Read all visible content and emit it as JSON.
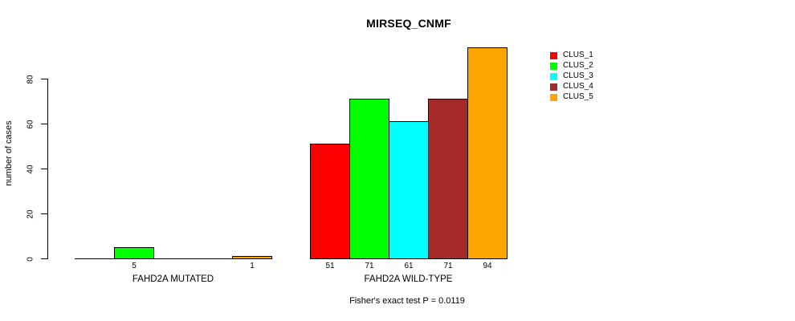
{
  "chart_data": {
    "type": "bar",
    "title": "MIRSEQ_CNMF",
    "ylabel": "number of cases",
    "xlabel": "",
    "categories": [
      "FAHD2A MUTATED",
      "FAHD2A WILD-TYPE"
    ],
    "series": [
      {
        "name": "CLUS_1",
        "color": "#FF0000",
        "values": [
          0,
          51
        ]
      },
      {
        "name": "CLUS_2",
        "color": "#00FF00",
        "values": [
          5,
          71
        ]
      },
      {
        "name": "CLUS_3",
        "color": "#00FFFF",
        "values": [
          0,
          61
        ]
      },
      {
        "name": "CLUS_4",
        "color": "#A52A2A",
        "values": [
          0,
          71
        ]
      },
      {
        "name": "CLUS_5",
        "color": "#FFA500",
        "values": [
          1,
          94
        ]
      }
    ],
    "yticks": [
      0,
      20,
      40,
      60,
      80
    ],
    "ylim": [
      0,
      94
    ],
    "grid": false,
    "bar_outline_color": "#000000",
    "value_labels": "shown under each bar for non-zero values",
    "legend": {
      "position": "right",
      "entries": [
        "CLUS_1",
        "CLUS_2",
        "CLUS_3",
        "CLUS_4",
        "CLUS_5"
      ]
    },
    "annotation": "Fisher's exact test P = 0.0119"
  }
}
